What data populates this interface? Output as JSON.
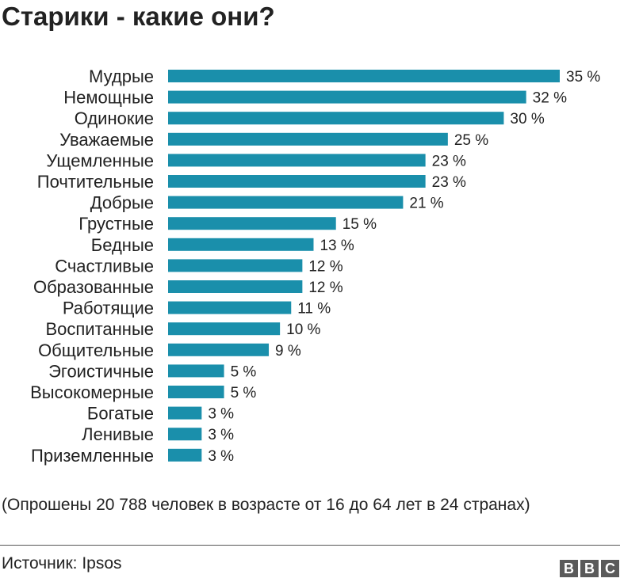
{
  "title": "Старики - какие они?",
  "note": "(Опрошены 20 788 человек в возрасте от 16 до 64 лет в 24 странах)",
  "source": "Источник: Ipsos",
  "logo": [
    "B",
    "B",
    "C"
  ],
  "colors": {
    "bar": "#1a8fab",
    "text": "#222222"
  },
  "chart_data": {
    "type": "bar",
    "orientation": "horizontal",
    "categories": [
      "Мудрые",
      "Немощные",
      "Одинокие",
      "Уважаемые",
      "Ущемленные",
      "Почтительные",
      "Добрые",
      "Грустные",
      "Бедные",
      "Счастливые",
      "Образованные",
      "Работящие",
      "Воспитанные",
      "Общительные",
      "Эгоистичные",
      "Высокомерные",
      "Богатые",
      "Ленивые",
      "Приземленные"
    ],
    "values": [
      35,
      32,
      30,
      25,
      23,
      23,
      21,
      15,
      13,
      12,
      12,
      11,
      10,
      9,
      5,
      5,
      3,
      3,
      3
    ],
    "value_labels": [
      "35 %",
      "32 %",
      "30 %",
      "25 %",
      "23 %",
      "23 %",
      "21 %",
      "15 %",
      "13 %",
      "12 %",
      "12 %",
      "11 %",
      "10 %",
      "9 %",
      "5 %",
      "5 %",
      "3 %",
      "3 %",
      "3 %"
    ],
    "xlim": [
      0,
      35
    ],
    "grid": false,
    "legend": "none"
  }
}
